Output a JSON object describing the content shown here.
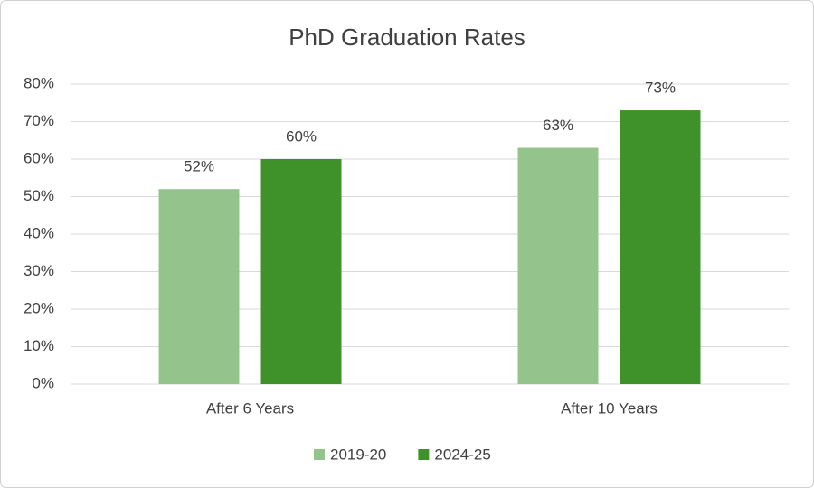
{
  "chart_data": {
    "type": "bar",
    "title": "PhD Graduation Rates",
    "categories": [
      "After 6 Years",
      "After 10 Years"
    ],
    "series": [
      {
        "name": "2019-20",
        "color": "#94c48b",
        "values": [
          52,
          63
        ],
        "value_labels": [
          "52%",
          "63%"
        ]
      },
      {
        "name": "2024-25",
        "color": "#3f922a",
        "values": [
          60,
          73
        ],
        "value_labels": [
          "60%",
          "73%"
        ]
      }
    ],
    "ylim": [
      0,
      80
    ],
    "yticks": [
      {
        "value": 0,
        "label": "0%"
      },
      {
        "value": 10,
        "label": "10%"
      },
      {
        "value": 20,
        "label": "20%"
      },
      {
        "value": 30,
        "label": "30%"
      },
      {
        "value": 40,
        "label": "40%"
      },
      {
        "value": 50,
        "label": "50%"
      },
      {
        "value": 60,
        "label": "60%"
      },
      {
        "value": 70,
        "label": "70%"
      },
      {
        "value": 80,
        "label": "80%"
      }
    ],
    "grid": true,
    "legend": "bottom"
  }
}
